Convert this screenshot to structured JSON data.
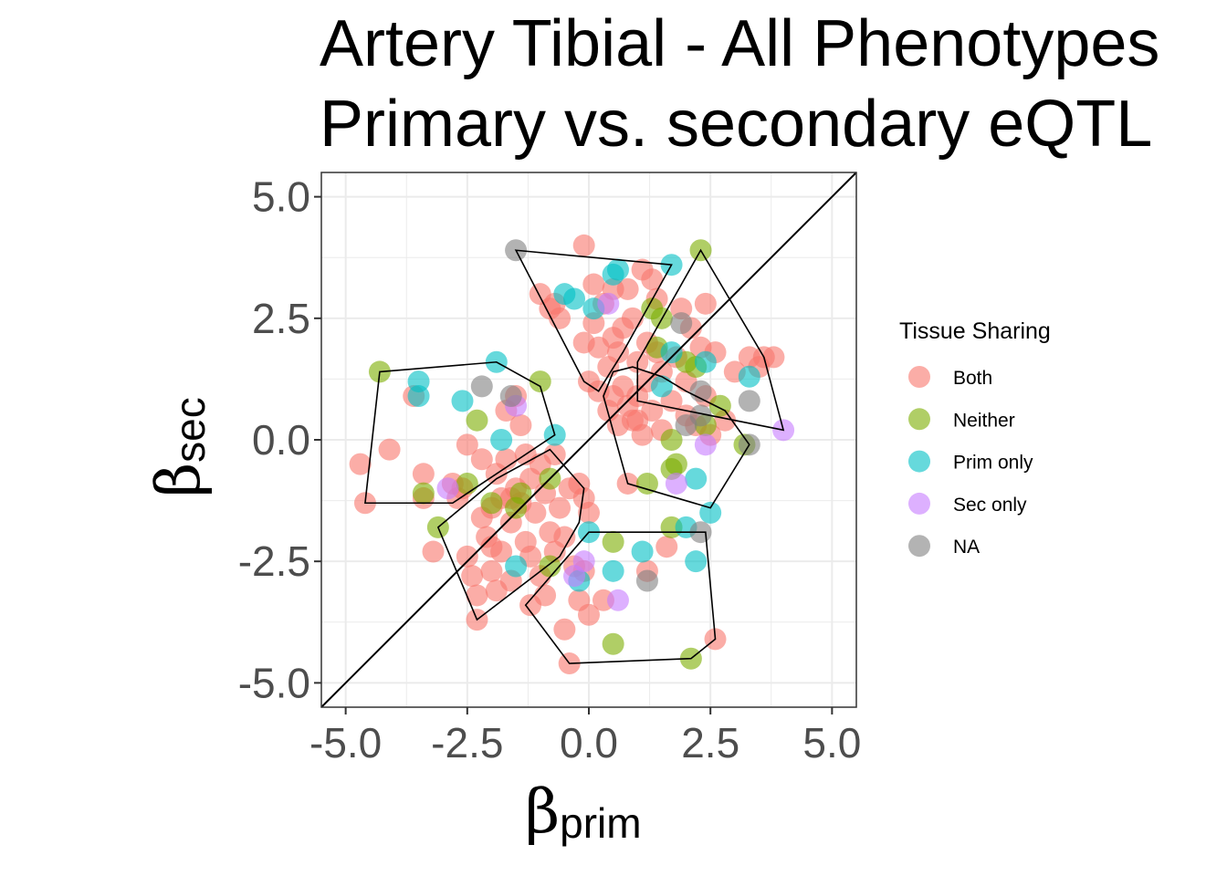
{
  "chart_data": {
    "type": "scatter",
    "title_lines": [
      "Artery Tibial - All Phenotypes",
      "Primary vs. secondary eQTL"
    ],
    "xlabel": {
      "symbol": "β",
      "subscript": "prim"
    },
    "ylabel": {
      "symbol": "β",
      "subscript": "sec"
    },
    "xlim": [
      -5.5,
      5.5
    ],
    "ylim": [
      -5.5,
      5.5
    ],
    "x_ticks": [
      -5.0,
      -2.5,
      0.0,
      2.5,
      5.0
    ],
    "y_ticks": [
      -5.0,
      -2.5,
      0.0,
      2.5,
      5.0
    ],
    "x_tick_labels": [
      "-5.0",
      "-2.5",
      "0.0",
      "2.5",
      "5.0"
    ],
    "y_tick_labels": [
      "-5.0",
      "-2.5",
      "0.0",
      "2.5",
      "5.0"
    ],
    "grid": true,
    "reference_line": "y = x",
    "legend": {
      "title": "Tissue Sharing",
      "placement": "right",
      "entries": [
        "Both",
        "Neither",
        "Prim only",
        "Sec only",
        "NA"
      ]
    },
    "colors": {
      "Both": "#F8766D",
      "Neither": "#7CAE00",
      "Prim only": "#00BFC4",
      "Sec only": "#C77CFF",
      "NA": "#808080"
    },
    "series": [
      {
        "name": "Both",
        "points": [
          [
            -4.7,
            -0.5
          ],
          [
            -4.6,
            -1.3
          ],
          [
            -4.1,
            -0.2
          ],
          [
            -3.6,
            0.9
          ],
          [
            -3.4,
            -0.7
          ],
          [
            -3.4,
            -1.2
          ],
          [
            -3.2,
            -2.3
          ],
          [
            -2.8,
            -0.9
          ],
          [
            -2.7,
            -1.2
          ],
          [
            -2.6,
            -1.0
          ],
          [
            -2.5,
            -0.1
          ],
          [
            -2.5,
            -2.4
          ],
          [
            -2.4,
            -2.8
          ],
          [
            -2.3,
            -3.7
          ],
          [
            -2.3,
            -3.2
          ],
          [
            -2.2,
            -0.4
          ],
          [
            -2.2,
            -1.6
          ],
          [
            -2.1,
            -2.0
          ],
          [
            -2.0,
            -2.2
          ],
          [
            -2.0,
            -2.7
          ],
          [
            -1.9,
            -3.1
          ],
          [
            -1.9,
            -0.7
          ],
          [
            -1.8,
            -1.2
          ],
          [
            -1.8,
            -2.3
          ],
          [
            -1.7,
            0.6
          ],
          [
            -1.7,
            -0.4
          ],
          [
            -1.6,
            -1.7
          ],
          [
            -1.6,
            -2.9
          ],
          [
            -1.5,
            0.9
          ],
          [
            -1.5,
            -1.0
          ],
          [
            -1.4,
            0.3
          ],
          [
            -1.4,
            -1.3
          ],
          [
            -1.3,
            -0.3
          ],
          [
            -1.3,
            -2.1
          ],
          [
            -1.2,
            -0.8
          ],
          [
            -1.2,
            -2.4
          ],
          [
            -1.2,
            -3.4
          ],
          [
            -1.1,
            -1.5
          ],
          [
            -1.0,
            -0.5
          ],
          [
            -1.0,
            -2.8
          ],
          [
            -1.0,
            3.0
          ],
          [
            -0.9,
            -1.1
          ],
          [
            -0.9,
            -3.2
          ],
          [
            -0.8,
            -1.9
          ],
          [
            -0.8,
            2.7
          ],
          [
            -0.7,
            -0.3
          ],
          [
            -0.7,
            -2.3
          ],
          [
            -0.7,
            2.8
          ],
          [
            -0.6,
            -1.4
          ],
          [
            -0.6,
            2.5
          ],
          [
            -0.5,
            -2.0
          ],
          [
            -0.5,
            -3.9
          ],
          [
            -0.4,
            -1.0
          ],
          [
            -0.4,
            -4.6
          ],
          [
            -0.3,
            -2.6
          ],
          [
            -0.2,
            -3.3
          ],
          [
            -0.1,
            -1.2
          ],
          [
            -0.1,
            -2.7
          ],
          [
            -0.1,
            4.0
          ],
          [
            -0.1,
            2.0
          ],
          [
            0.0,
            -3.6
          ],
          [
            0.0,
            -1.5
          ],
          [
            0.0,
            1.2
          ],
          [
            0.1,
            3.2
          ],
          [
            0.1,
            2.4
          ],
          [
            0.2,
            1.9
          ],
          [
            0.2,
            1.0
          ],
          [
            0.3,
            -3.3
          ],
          [
            0.3,
            2.8
          ],
          [
            0.4,
            1.5
          ],
          [
            0.4,
            0.6
          ],
          [
            0.5,
            2.1
          ],
          [
            0.5,
            3.1
          ],
          [
            0.6,
            0.3
          ],
          [
            0.6,
            1.8
          ],
          [
            0.7,
            2.3
          ],
          [
            0.7,
            1.1
          ],
          [
            0.8,
            0.7
          ],
          [
            0.8,
            -0.9
          ],
          [
            0.8,
            3.1
          ],
          [
            0.9,
            2.5
          ],
          [
            0.9,
            0.4
          ],
          [
            1.0,
            1.6
          ],
          [
            1.0,
            0.9
          ],
          [
            1.1,
            3.5
          ],
          [
            1.1,
            0.1
          ],
          [
            1.2,
            2.0
          ],
          [
            1.2,
            1.2
          ],
          [
            1.2,
            -2.7
          ],
          [
            1.3,
            3.3
          ],
          [
            1.3,
            0.6
          ],
          [
            1.4,
            1.8
          ],
          [
            1.4,
            2.9
          ],
          [
            1.5,
            0.2
          ],
          [
            1.5,
            1.4
          ],
          [
            1.6,
            -2.2
          ],
          [
            1.7,
            0.8
          ],
          [
            1.8,
            1.7
          ],
          [
            1.9,
            2.7
          ],
          [
            2.0,
            1.2
          ],
          [
            2.0,
            0.5
          ],
          [
            2.1,
            2.3
          ],
          [
            2.2,
            0.3
          ],
          [
            2.3,
            1.9
          ],
          [
            2.4,
            0.9
          ],
          [
            2.4,
            2.8
          ],
          [
            2.5,
            0.1
          ],
          [
            2.6,
            1.8
          ],
          [
            2.6,
            -4.1
          ],
          [
            2.8,
            0.4
          ],
          [
            3.0,
            1.4
          ],
          [
            3.3,
            1.7
          ],
          [
            3.5,
            1.5
          ],
          [
            3.6,
            1.7
          ],
          [
            3.8,
            1.7
          ],
          [
            0.5,
            0.9
          ],
          [
            1.0,
            0.4
          ],
          [
            -0.2,
            -0.9
          ],
          [
            -1.6,
            -1.2
          ],
          [
            -2.0,
            -1.4
          ]
        ]
      },
      {
        "name": "Neither",
        "points": [
          [
            -4.3,
            1.4
          ],
          [
            -3.4,
            -1.1
          ],
          [
            -3.1,
            -1.8
          ],
          [
            -2.5,
            -0.9
          ],
          [
            -2.3,
            0.4
          ],
          [
            -2.0,
            -1.3
          ],
          [
            -1.5,
            -1.4
          ],
          [
            -1.4,
            -1.1
          ],
          [
            -1.0,
            1.2
          ],
          [
            -0.8,
            -0.8
          ],
          [
            -0.8,
            -2.6
          ],
          [
            0.5,
            -2.1
          ],
          [
            0.5,
            -4.2
          ],
          [
            1.2,
            -0.9
          ],
          [
            1.3,
            2.7
          ],
          [
            1.5,
            2.5
          ],
          [
            1.7,
            0.0
          ],
          [
            1.7,
            -0.6
          ],
          [
            1.8,
            -0.5
          ],
          [
            1.7,
            -1.8
          ],
          [
            2.0,
            1.6
          ],
          [
            2.1,
            -4.5
          ],
          [
            2.3,
            3.9
          ],
          [
            2.4,
            0.3
          ],
          [
            2.7,
            0.7
          ],
          [
            3.2,
            -0.1
          ],
          [
            2.2,
            1.5
          ],
          [
            1.4,
            1.9
          ]
        ]
      },
      {
        "name": "Prim only",
        "points": [
          [
            -3.5,
            1.2
          ],
          [
            -3.5,
            0.9
          ],
          [
            -2.6,
            0.8
          ],
          [
            -1.9,
            1.6
          ],
          [
            -1.8,
            0.0
          ],
          [
            -1.5,
            -2.6
          ],
          [
            -0.7,
            0.1
          ],
          [
            -0.5,
            3.0
          ],
          [
            -0.3,
            2.9
          ],
          [
            -0.2,
            -2.9
          ],
          [
            0.0,
            -1.9
          ],
          [
            0.1,
            2.7
          ],
          [
            0.5,
            3.4
          ],
          [
            0.5,
            -2.7
          ],
          [
            0.6,
            3.5
          ],
          [
            1.1,
            -2.3
          ],
          [
            1.5,
            1.1
          ],
          [
            1.7,
            3.6
          ],
          [
            1.7,
            1.8
          ],
          [
            2.0,
            -1.8
          ],
          [
            2.2,
            -0.8
          ],
          [
            2.2,
            -2.5
          ],
          [
            2.4,
            1.6
          ],
          [
            2.5,
            -1.5
          ],
          [
            3.3,
            1.3
          ]
        ]
      },
      {
        "name": "Sec only",
        "points": [
          [
            -2.9,
            -1.0
          ],
          [
            -1.5,
            0.7
          ],
          [
            -0.3,
            -2.8
          ],
          [
            0.4,
            2.8
          ],
          [
            0.6,
            -3.3
          ],
          [
            1.8,
            -0.9
          ],
          [
            2.4,
            -0.1
          ],
          [
            4.0,
            0.2
          ],
          [
            -0.1,
            -2.5
          ]
        ]
      },
      {
        "name": "NA",
        "points": [
          [
            -1.5,
            3.9
          ],
          [
            -2.2,
            1.1
          ],
          [
            -1.6,
            0.9
          ],
          [
            1.9,
            2.4
          ],
          [
            2.0,
            0.3
          ],
          [
            2.3,
            1.0
          ],
          [
            2.3,
            -1.9
          ],
          [
            1.2,
            -2.9
          ],
          [
            3.3,
            0.8
          ],
          [
            3.3,
            -0.1
          ],
          [
            2.3,
            0.5
          ]
        ]
      }
    ],
    "hulls": [
      [
        [
          -1.5,
          3.9
        ],
        [
          1.7,
          3.6
        ],
        [
          0.7,
          1.8
        ],
        [
          0.2,
          1.0
        ],
        [
          -0.1,
          1.2
        ]
      ],
      [
        [
          2.3,
          3.9
        ],
        [
          3.6,
          1.7
        ],
        [
          4.0,
          0.2
        ],
        [
          1.0,
          0.8
        ],
        [
          1.0,
          1.6
        ]
      ],
      [
        [
          -4.3,
          1.4
        ],
        [
          -1.9,
          1.6
        ],
        [
          -1.0,
          1.1
        ],
        [
          -0.7,
          0.1
        ],
        [
          -2.8,
          -1.3
        ],
        [
          -4.6,
          -1.3
        ]
      ],
      [
        [
          -0.8,
          -0.2
        ],
        [
          -0.1,
          -1.0
        ],
        [
          -0.2,
          -1.7
        ],
        [
          -0.6,
          -2.4
        ],
        [
          -2.3,
          -3.7
        ],
        [
          -3.1,
          -1.8
        ],
        [
          -1.9,
          -0.8
        ]
      ],
      [
        [
          0.0,
          -1.9
        ],
        [
          2.4,
          -1.9
        ],
        [
          2.6,
          -4.1
        ],
        [
          2.1,
          -4.5
        ],
        [
          -0.4,
          -4.6
        ],
        [
          -1.3,
          -3.4
        ]
      ],
      [
        [
          0.3,
          0.9
        ],
        [
          0.5,
          1.4
        ],
        [
          0.9,
          1.5
        ],
        [
          1.5,
          1.3
        ],
        [
          2.0,
          1.0
        ],
        [
          2.8,
          0.6
        ],
        [
          3.3,
          -0.1
        ],
        [
          2.5,
          -1.4
        ],
        [
          0.8,
          -0.9
        ]
      ]
    ]
  }
}
